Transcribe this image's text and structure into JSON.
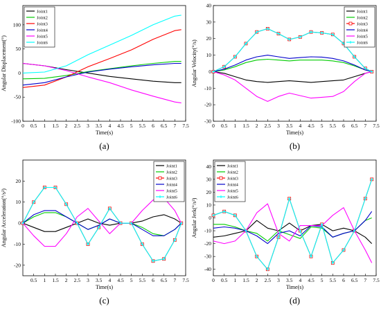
{
  "chart_data": [
    {
      "panel": "(a)",
      "type": "line",
      "xlabel": "Time(s)",
      "ylabel": "Angular Displacement(°)",
      "xlim": [
        0,
        7.5
      ],
      "ylim": [
        -100,
        140
      ],
      "xticks": [
        "0",
        "0.5",
        "1",
        "1.5",
        "2",
        "2.5",
        "3",
        "3.5",
        "4",
        "4.5",
        "5",
        "5.5",
        "6",
        "6.5",
        "7",
        "7.5"
      ],
      "yticks": [
        "-100",
        "-50",
        "0",
        "50",
        "100"
      ],
      "legend_position": "top-left",
      "series": [
        {
          "name": "Joint1",
          "color": "#000000",
          "marker": "none",
          "x": [
            0,
            1,
            2,
            3,
            4,
            5,
            6,
            7,
            7.3
          ],
          "y": [
            20,
            15,
            7,
            0,
            -7,
            -12,
            -17,
            -20,
            -20
          ]
        },
        {
          "name": "Joint2",
          "color": "#00cc00",
          "marker": "none",
          "x": [
            0,
            1,
            2,
            3,
            4,
            5,
            6,
            7,
            7.3
          ],
          "y": [
            -12,
            -11,
            -5,
            3,
            9,
            15,
            20,
            24,
            24
          ]
        },
        {
          "name": "Joint3",
          "color": "#ff0000",
          "marker": "none",
          "x": [
            0,
            1,
            2,
            3,
            4,
            5,
            6,
            7,
            7.3
          ],
          "y": [
            -30,
            -25,
            -8,
            13,
            30,
            48,
            70,
            88,
            90
          ]
        },
        {
          "name": "Joint4",
          "color": "#0000cc",
          "marker": "none",
          "x": [
            0,
            1,
            2,
            3,
            4,
            5,
            6,
            7,
            7.3
          ],
          "y": [
            -25,
            -20,
            -8,
            2,
            8,
            13,
            17,
            20,
            20
          ]
        },
        {
          "name": "Joint5",
          "color": "#ff00ff",
          "marker": "none",
          "x": [
            0,
            1,
            2,
            3,
            4,
            5,
            6,
            7,
            7.3
          ],
          "y": [
            20,
            15,
            5,
            -8,
            -20,
            -35,
            -48,
            -60,
            -62
          ]
        },
        {
          "name": "Joint6",
          "color": "#00ffff",
          "marker": "none",
          "x": [
            0,
            1,
            2,
            3,
            4,
            5,
            6,
            7,
            7.3
          ],
          "y": [
            0,
            2,
            15,
            38,
            58,
            78,
            100,
            118,
            120
          ]
        }
      ]
    },
    {
      "panel": "(b)",
      "type": "line",
      "xlabel": "Time(s)",
      "ylabel": "Angular Velocity(°/s)",
      "xlim": [
        0,
        7.5
      ],
      "ylim": [
        -30,
        40
      ],
      "xticks": [
        "0",
        "0.5",
        "1",
        "1.5",
        "2",
        "2.5",
        "3",
        "3.5",
        "4",
        "4.5",
        "5",
        "5.5",
        "6",
        "6.5",
        "7",
        "7.5"
      ],
      "yticks": [
        "-30",
        "-20",
        "-10",
        "0",
        "10",
        "20",
        "30",
        "40"
      ],
      "legend_position": "top-right",
      "series": [
        {
          "name": "Joint1",
          "color": "#000000",
          "marker": "none",
          "x": [
            0,
            0.5,
            1,
            1.5,
            2,
            2.5,
            3,
            3.5,
            4,
            4.5,
            5,
            5.5,
            6,
            6.5,
            7,
            7.3
          ],
          "y": [
            0,
            -1,
            -3,
            -5,
            -6,
            -6.5,
            -6,
            -5.5,
            -6,
            -6.5,
            -6,
            -5.5,
            -5,
            -3,
            -1,
            0
          ]
        },
        {
          "name": "Joint2",
          "color": "#00cc00",
          "marker": "none",
          "x": [
            0,
            0.5,
            1,
            1.5,
            2,
            2.5,
            3,
            3.5,
            4,
            4.5,
            5,
            5.5,
            6,
            6.5,
            7,
            7.3
          ],
          "y": [
            0,
            1,
            3,
            5.5,
            7,
            7.5,
            7,
            6.5,
            7,
            7,
            7,
            6.5,
            5.5,
            3.5,
            1,
            0
          ]
        },
        {
          "name": "Joint3",
          "color": "#ff0000",
          "marker": "square",
          "x": [
            0,
            0.5,
            1,
            1.5,
            2,
            2.5,
            3,
            3.5,
            4,
            4.5,
            5,
            5.5,
            6,
            6.5,
            7,
            7.3
          ],
          "y": [
            0,
            3,
            9,
            17,
            24,
            26,
            23,
            19.5,
            21,
            24,
            23.5,
            22.5,
            17,
            9,
            2,
            0
          ]
        },
        {
          "name": "Joint4",
          "color": "#0000cc",
          "marker": "none",
          "x": [
            0,
            0.5,
            1,
            1.5,
            2,
            2.5,
            3,
            3.5,
            4,
            4.5,
            5,
            5.5,
            6,
            6.5,
            7,
            7.3
          ],
          "y": [
            0,
            1.5,
            4,
            7,
            9,
            10,
            9,
            8,
            8.5,
            9,
            8.8,
            8,
            6.5,
            4,
            1,
            0
          ]
        },
        {
          "name": "Joint5",
          "color": "#ff00ff",
          "marker": "none",
          "x": [
            0,
            0.5,
            1,
            1.5,
            2,
            2.5,
            3,
            3.5,
            4,
            4.5,
            5,
            5.5,
            6,
            6.5,
            7,
            7.3
          ],
          "y": [
            0,
            -2,
            -5,
            -10,
            -15,
            -18,
            -15,
            -13,
            -14.5,
            -16,
            -15.5,
            -15,
            -12,
            -6,
            -1,
            0
          ]
        },
        {
          "name": "Joint6",
          "color": "#00ffff",
          "marker": "cross",
          "x": [
            0,
            0.5,
            1,
            1.5,
            2,
            2.5,
            3,
            3.5,
            4,
            4.5,
            5,
            5.5,
            6,
            6.5,
            7,
            7.3
          ],
          "y": [
            0,
            3,
            9,
            17,
            24,
            26,
            23,
            19.5,
            21,
            24,
            23.5,
            22.5,
            17,
            9,
            2,
            0
          ]
        }
      ]
    },
    {
      "panel": "(c)",
      "type": "line",
      "xlabel": "Time(s)",
      "ylabel": "Angular Acceleration(°/s²)",
      "xlim": [
        0,
        7.5
      ],
      "ylim": [
        -25,
        30
      ],
      "xticks": [
        "0.5",
        "1",
        "1.5",
        "2",
        "2.5",
        "3",
        "3.5",
        "4",
        "4.5",
        "5",
        "5.5",
        "6",
        "6.5",
        "7",
        "7.5"
      ],
      "yticks": [
        "-20",
        "-10",
        "0",
        "10",
        "20"
      ],
      "legend_position": "top-right",
      "series": [
        {
          "name": "Joint1",
          "color": "#000000",
          "marker": "none",
          "x": [
            0,
            0.5,
            1,
            1.5,
            2,
            2.5,
            3,
            3.5,
            4,
            4.5,
            5,
            5.5,
            6,
            6.5,
            7,
            7.3
          ],
          "y": [
            0,
            -2,
            -4,
            -4,
            -2,
            0,
            2,
            0,
            -1,
            0,
            0,
            1,
            3,
            4,
            2,
            0
          ]
        },
        {
          "name": "Joint2",
          "color": "#00cc00",
          "marker": "none",
          "x": [
            0,
            0.5,
            1,
            1.5,
            2,
            2.5,
            3,
            3.5,
            4,
            4.5,
            5,
            5.5,
            6,
            6.5,
            7,
            7.3
          ],
          "y": [
            0,
            3,
            5,
            5,
            3,
            0,
            -3,
            -1,
            2,
            0,
            0,
            -2,
            -5,
            -6,
            -3,
            0
          ]
        },
        {
          "name": "Joint3",
          "color": "#ff0000",
          "marker": "square",
          "x": [
            0,
            0.5,
            1,
            1.5,
            2,
            2.5,
            3,
            3.5,
            4,
            4.5,
            5,
            5.5,
            6,
            6.5,
            7,
            7.3
          ],
          "y": [
            0,
            10,
            17,
            17,
            9,
            0,
            -10,
            -2,
            7,
            0,
            0,
            -10,
            -18,
            -17,
            -8,
            0
          ]
        },
        {
          "name": "Joint4",
          "color": "#0000cc",
          "marker": "none",
          "x": [
            0,
            0.5,
            1,
            1.5,
            2,
            2.5,
            3,
            3.5,
            4,
            4.5,
            5,
            5.5,
            6,
            6.5,
            7,
            7.3
          ],
          "y": [
            0,
            4,
            6,
            6,
            3,
            0,
            -3,
            -1,
            2,
            0,
            0,
            -3,
            -6,
            -6,
            -3,
            0
          ]
        },
        {
          "name": "Joint5",
          "color": "#ff00ff",
          "marker": "none",
          "x": [
            0,
            0.5,
            1,
            1.5,
            2,
            2.5,
            3,
            3.5,
            4,
            4.5,
            5,
            5.5,
            6,
            6.5,
            7,
            7.3
          ],
          "y": [
            0,
            -6,
            -11,
            -11,
            -5,
            3,
            7,
            1,
            -5,
            0,
            0,
            6,
            11,
            12,
            6,
            0
          ]
        },
        {
          "name": "Joint6",
          "color": "#00ffff",
          "marker": "cross",
          "x": [
            0,
            0.5,
            1,
            1.5,
            2,
            2.5,
            3,
            3.5,
            4,
            4.5,
            5,
            5.5,
            6,
            6.5,
            7,
            7.3
          ],
          "y": [
            0,
            10,
            17,
            17,
            9,
            0,
            -10,
            -2,
            7,
            0,
            0,
            -10,
            -18,
            -17,
            -8,
            0
          ]
        }
      ]
    },
    {
      "panel": "(d)",
      "type": "line",
      "xlabel": "Time(s)",
      "ylabel": "Angular Jerk(°/s³)",
      "xlim": [
        0,
        7.5
      ],
      "ylim": [
        -45,
        45
      ],
      "xticks": [
        "0",
        "0.5",
        "1",
        "1.5",
        "2",
        "2.5",
        "3",
        "3.5",
        "4",
        "4.5",
        "5",
        "5.5",
        "6",
        "6.5",
        "7",
        "7.5"
      ],
      "yticks": [
        "-40",
        "-30",
        "-20",
        "-10",
        "0",
        "10",
        "20",
        "30",
        "40"
      ],
      "legend_position": "top-left",
      "series": [
        {
          "name": "Joint1",
          "color": "#000000",
          "marker": "none",
          "x": [
            0,
            0.5,
            1,
            1.5,
            2,
            2.5,
            3,
            3.5,
            4,
            4.5,
            5,
            5.5,
            6,
            6.5,
            7,
            7.3
          ],
          "y": [
            -15,
            -14,
            -12,
            -10,
            -2,
            -8,
            -10,
            -4,
            -10,
            -6,
            -5,
            -10,
            -8,
            -10,
            -15,
            -20
          ]
        },
        {
          "name": "Joint2",
          "color": "#00cc00",
          "marker": "none",
          "x": [
            0,
            0.5,
            1,
            1.5,
            2,
            2.5,
            3,
            3.5,
            4,
            4.5,
            5,
            5.5,
            6,
            6.5,
            7,
            7.3
          ],
          "y": [
            -5,
            -5,
            -7,
            -10,
            -12,
            -18,
            -10,
            -13,
            -16,
            -7,
            -8,
            -15,
            -12,
            -10,
            -2,
            0
          ]
        },
        {
          "name": "Joint3",
          "color": "#ff0000",
          "marker": "square",
          "x": [
            0,
            0.5,
            1,
            1.5,
            2,
            2.5,
            3,
            3.5,
            4,
            4.5,
            5,
            5.5,
            6,
            6.5,
            7,
            7.3
          ],
          "y": [
            2,
            5,
            2,
            -10,
            -30,
            -40,
            -15,
            15,
            -10,
            -30,
            -5,
            -35,
            -25,
            -10,
            15,
            30
          ]
        },
        {
          "name": "Joint4",
          "color": "#0000cc",
          "marker": "none",
          "x": [
            0,
            0.5,
            1,
            1.5,
            2,
            2.5,
            3,
            3.5,
            4,
            4.5,
            5,
            5.5,
            6,
            6.5,
            7,
            7.3
          ],
          "y": [
            -8,
            -7,
            -8,
            -10,
            -14,
            -20,
            -12,
            -10,
            -14,
            -6,
            -7,
            -15,
            -12,
            -10,
            -2,
            5
          ]
        },
        {
          "name": "Joint5",
          "color": "#ff00ff",
          "marker": "none",
          "x": [
            0,
            0.5,
            1,
            1.5,
            2,
            2.5,
            3,
            3.5,
            4,
            4.5,
            5,
            5.5,
            6,
            6.5,
            7,
            7.3
          ],
          "y": [
            -18,
            -20,
            -18,
            -10,
            4,
            11,
            -12,
            -18,
            -6,
            -6,
            -6,
            2,
            8,
            -10,
            -25,
            -35
          ]
        },
        {
          "name": "Joint6",
          "color": "#00ffff",
          "marker": "cross",
          "x": [
            0,
            0.5,
            1,
            1.5,
            2,
            2.5,
            3,
            3.5,
            4,
            4.5,
            5,
            5.5,
            6,
            6.5,
            7,
            7.3
          ],
          "y": [
            2,
            5,
            2,
            -10,
            -30,
            -40,
            -15,
            15,
            -10,
            -30,
            -5,
            -35,
            -25,
            -10,
            15,
            30
          ]
        }
      ]
    }
  ]
}
